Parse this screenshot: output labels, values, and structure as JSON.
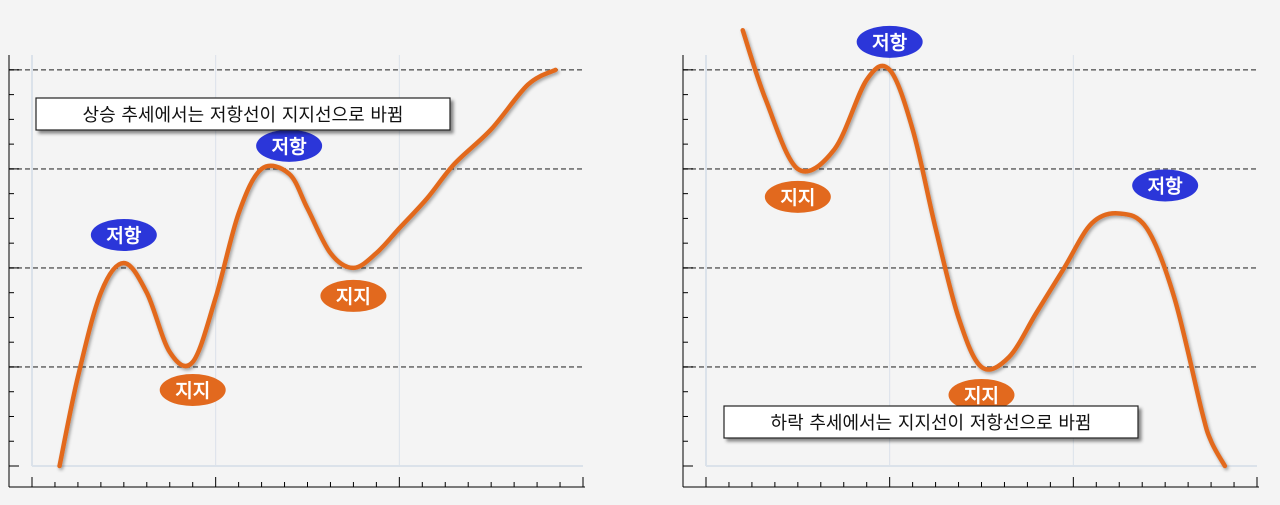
{
  "colors": {
    "background": "#f4f4f4",
    "curve": "#e2691e",
    "resistance_badge": "#2b36d9",
    "support_badge": "#e2691e",
    "dashed_line": "#707070",
    "grid": "#dbe2ea",
    "axis": "#000000"
  },
  "chart_data": [
    {
      "type": "line",
      "title": "",
      "xlabel": "",
      "ylabel": "",
      "xlim": [
        0,
        12
      ],
      "ylim": [
        0,
        4.15
      ],
      "grid": true,
      "note": "상승 추세에서는 저항선이 지지선으로 바뀜",
      "dashed_levels": [
        1,
        2,
        3,
        4
      ],
      "x": [
        0.6,
        1.0,
        1.5,
        2.0,
        2.5,
        3.0,
        3.5,
        4.0,
        4.5,
        5.0,
        5.6,
        6.0,
        6.5,
        7.0,
        7.5,
        8.0,
        8.6,
        9.2,
        10.0,
        10.8,
        11.4
      ],
      "y": [
        0.0,
        0.9,
        1.75,
        2.05,
        1.75,
        1.15,
        1.05,
        1.7,
        2.55,
        3.0,
        2.95,
        2.6,
        2.15,
        2.0,
        2.15,
        2.4,
        2.7,
        3.05,
        3.4,
        3.85,
        4.0
      ],
      "labels": [
        {
          "text": "저항",
          "kind": "resistance",
          "x": 2.0,
          "y": 2.05
        },
        {
          "text": "지지",
          "kind": "support",
          "x": 3.5,
          "y": 1.05
        },
        {
          "text": "저항",
          "kind": "resistance",
          "x": 5.6,
          "y": 2.95
        },
        {
          "text": "지지",
          "kind": "support",
          "x": 7.0,
          "y": 2.0
        }
      ]
    },
    {
      "type": "line",
      "title": "",
      "xlabel": "",
      "ylabel": "",
      "xlim": [
        0,
        12
      ],
      "ylim": [
        0,
        4.15
      ],
      "grid": true,
      "note": "하락 추세에서는 지지선이 저항선으로 바뀜",
      "dashed_levels": [
        1,
        2,
        3,
        4
      ],
      "x": [
        0.8,
        1.3,
        2.0,
        2.8,
        3.5,
        4.0,
        4.5,
        5.0,
        5.5,
        6.0,
        6.6,
        7.2,
        7.8,
        8.4,
        9.0,
        9.6,
        10.2,
        10.8,
        11.0,
        11.3
      ],
      "y": [
        4.4,
        3.7,
        3.0,
        3.2,
        3.9,
        4.0,
        3.4,
        2.4,
        1.5,
        1.0,
        1.1,
        1.55,
        2.0,
        2.45,
        2.55,
        2.4,
        1.7,
        0.55,
        0.25,
        0.0
      ],
      "labels": [
        {
          "text": "저항",
          "kind": "resistance",
          "x": 4.0,
          "y": 4.0
        },
        {
          "text": "지지",
          "kind": "support",
          "x": 2.0,
          "y": 3.0
        },
        {
          "text": "지지",
          "kind": "support",
          "x": 6.0,
          "y": 1.0
        },
        {
          "text": "저항",
          "kind": "resistance",
          "x": 10.0,
          "y": 2.55
        }
      ]
    }
  ]
}
